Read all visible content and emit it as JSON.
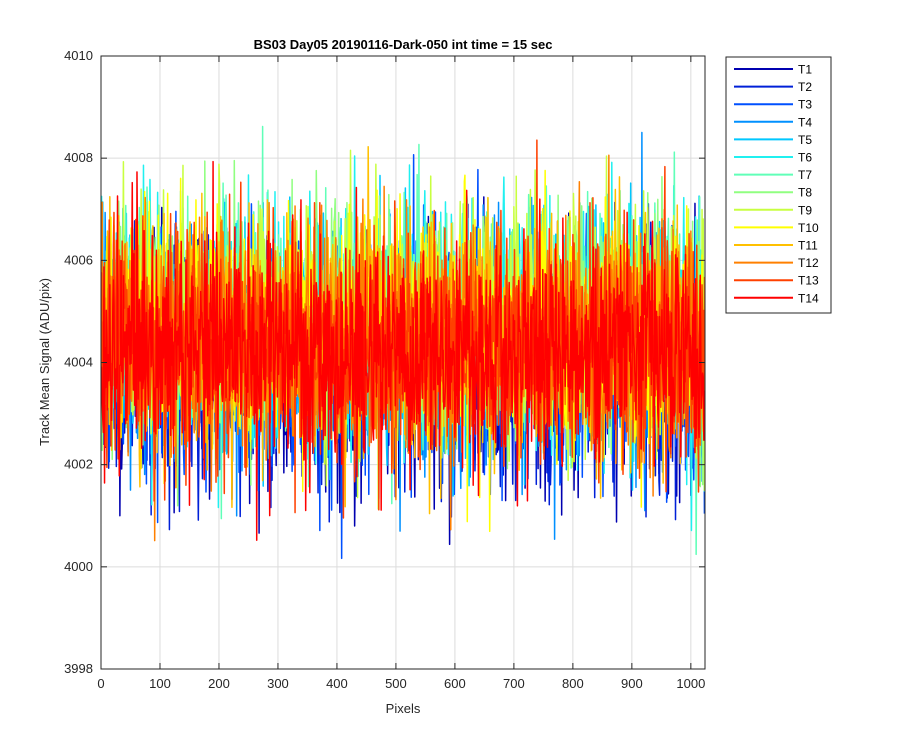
{
  "chart_data": {
    "type": "line",
    "title": "BS03 Day05 20190116-Dark-050 int time = 15 sec",
    "xlabel": "Pixels",
    "ylabel": "Track Mean Signal (ADU/pix)",
    "xlim": [
      0,
      1024
    ],
    "ylim": [
      3998,
      4010
    ],
    "xticks": [
      0,
      100,
      200,
      300,
      400,
      500,
      600,
      700,
      800,
      900,
      1000
    ],
    "yticks": [
      3998,
      4000,
      4002,
      4004,
      4006,
      4008,
      4010
    ],
    "grid": true,
    "legend_position": "outside-right",
    "n_points": 1024,
    "series": [
      {
        "name": "T1",
        "color": "#0000b0",
        "mean": 4003.9,
        "spread": 1.15,
        "seed": 11
      },
      {
        "name": "T2",
        "color": "#0020d8",
        "mean": 4004.0,
        "spread": 1.1,
        "seed": 22
      },
      {
        "name": "T3",
        "color": "#0050ff",
        "mean": 4004.1,
        "spread": 1.1,
        "seed": 33
      },
      {
        "name": "T4",
        "color": "#0090ff",
        "mean": 4004.3,
        "spread": 1.1,
        "seed": 44
      },
      {
        "name": "T5",
        "color": "#00c8ff",
        "mean": 4004.5,
        "spread": 1.1,
        "seed": 55
      },
      {
        "name": "T6",
        "color": "#20f0f0",
        "mean": 4004.7,
        "spread": 1.1,
        "seed": 66
      },
      {
        "name": "T7",
        "color": "#60ffb8",
        "mean": 4004.8,
        "spread": 1.1,
        "seed": 77
      },
      {
        "name": "T8",
        "color": "#90ff80",
        "mean": 4004.8,
        "spread": 1.1,
        "seed": 88
      },
      {
        "name": "T9",
        "color": "#c8ff40",
        "mean": 4004.7,
        "spread": 1.1,
        "seed": 99
      },
      {
        "name": "T10",
        "color": "#ffff00",
        "mean": 4004.6,
        "spread": 1.1,
        "seed": 111
      },
      {
        "name": "T11",
        "color": "#ffc000",
        "mean": 4004.5,
        "spread": 1.1,
        "seed": 122
      },
      {
        "name": "T12",
        "color": "#ff8000",
        "mean": 4004.4,
        "spread": 1.1,
        "seed": 133
      },
      {
        "name": "T13",
        "color": "#ff4000",
        "mean": 4004.3,
        "spread": 1.1,
        "seed": 144
      },
      {
        "name": "T14",
        "color": "#ff0000",
        "mean": 4004.2,
        "spread": 1.1,
        "seed": 155
      }
    ]
  }
}
